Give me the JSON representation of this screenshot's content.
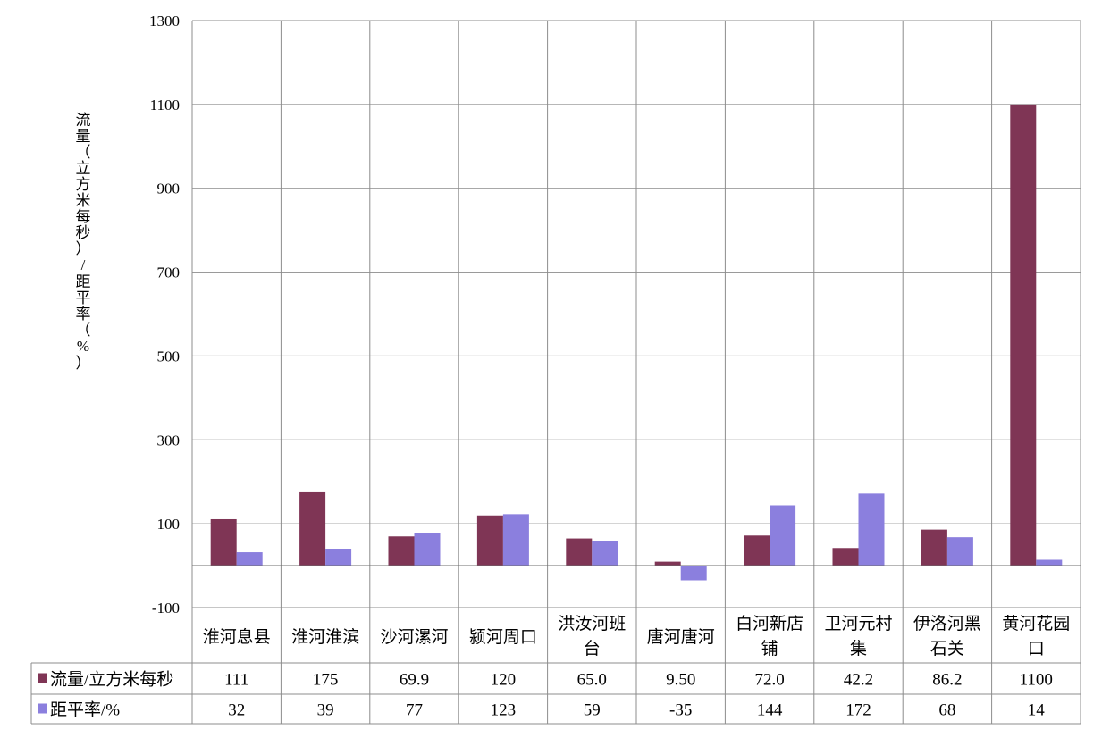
{
  "chart_data": {
    "type": "bar",
    "ylabel_lines": [
      "流",
      "量",
      "（",
      "立",
      "方",
      "米",
      "每",
      "秒",
      "）",
      "/",
      "距",
      "平",
      "率",
      "（",
      "%",
      "）"
    ],
    "ylim": [
      -100,
      1300
    ],
    "ticks": [
      -100,
      100,
      300,
      500,
      700,
      900,
      1100,
      1300
    ],
    "tick_labels": [
      "-100",
      "100",
      "300",
      "500",
      "700",
      "900",
      "1100",
      "1300"
    ],
    "grid": true,
    "categories": [
      [
        "淮河息县"
      ],
      [
        "淮河淮滨"
      ],
      [
        "沙河漯河"
      ],
      [
        "颍河周口"
      ],
      [
        "洪汝河班",
        "台"
      ],
      [
        "唐河唐河"
      ],
      [
        "白河新店",
        "铺"
      ],
      [
        "卫河元村",
        "集"
      ],
      [
        "伊洛河黑",
        "石关"
      ],
      [
        "黄河花园",
        "口"
      ]
    ],
    "series": [
      {
        "name": "流量/立方米每秒",
        "color": "#7F3555",
        "values": [
          111,
          175,
          69.9,
          120,
          65.0,
          9.5,
          72.0,
          42.2,
          86.2,
          1100
        ],
        "value_labels": [
          "111",
          "175",
          "69.9",
          "120",
          "65.0",
          "9.50",
          "72.0",
          "42.2",
          "86.2",
          "1100"
        ]
      },
      {
        "name": "距平率/%",
        "color": "#8B7FDE",
        "values": [
          32,
          39,
          77,
          123,
          59,
          -35,
          144,
          172,
          68,
          14
        ],
        "value_labels": [
          "32",
          "39",
          "77",
          "123",
          "59",
          "-35",
          "144",
          "172",
          "68",
          "14"
        ]
      }
    ]
  }
}
